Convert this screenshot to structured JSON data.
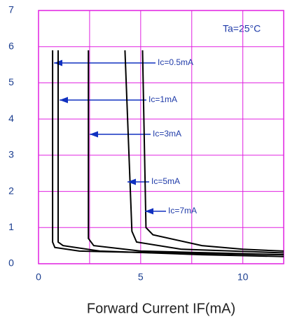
{
  "chart_data": {
    "type": "line",
    "x_label": "Forward Current IF(mA)",
    "annotation": "Ta=25°C",
    "xlim": [
      0,
      12
    ],
    "xticks": [
      0,
      5,
      10
    ],
    "xgrid": [
      2.5,
      5,
      7.5,
      10
    ],
    "ylim": [
      0,
      7
    ],
    "yticks": [
      0,
      1,
      2,
      3,
      4,
      5,
      6,
      7
    ],
    "grid_color": "#e020e0",
    "color": "#000000",
    "arrow_color": "#1030c0",
    "series": [
      {
        "name": "Ic=0.5mA",
        "x": [
          0.69,
          0.69,
          0.8,
          2,
          6,
          12
        ],
        "values": [
          5.9,
          0.6,
          0.45,
          0.35,
          0.3,
          0.25
        ]
      },
      {
        "name": "Ic=1mA",
        "x": [
          0.96,
          0.96,
          1.2,
          3,
          8,
          12
        ],
        "values": [
          5.9,
          0.6,
          0.5,
          0.35,
          0.25,
          0.2
        ]
      },
      {
        "name": "Ic=3mA",
        "x": [
          2.44,
          2.44,
          2.7,
          5,
          12
        ],
        "values": [
          5.9,
          0.7,
          0.5,
          0.35,
          0.25
        ]
      },
      {
        "name": "Ic=5mA",
        "x": [
          4.23,
          4.57,
          4.8,
          7,
          12
        ],
        "values": [
          5.9,
          0.9,
          0.6,
          0.4,
          0.3
        ]
      },
      {
        "name": "Ic=7mA",
        "x": [
          5.09,
          5.26,
          5.6,
          8,
          10,
          12
        ],
        "values": [
          5.9,
          1.0,
          0.8,
          0.5,
          0.4,
          0.35
        ]
      }
    ]
  }
}
